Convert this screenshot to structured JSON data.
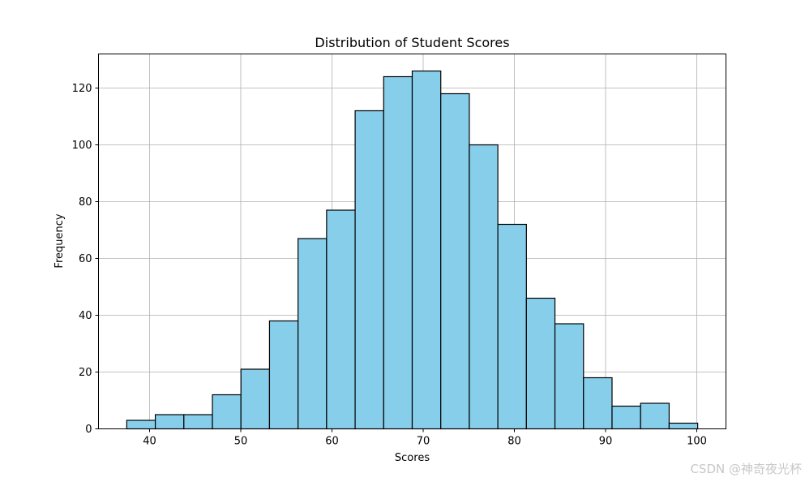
{
  "chart_data": {
    "type": "bar",
    "title": "Distribution of Student Scores",
    "xlabel": "Scores",
    "ylabel": "Frequency",
    "bin_edges": [
      37.5,
      40.63,
      43.76,
      46.89,
      50.02,
      53.15,
      56.28,
      59.41,
      62.54,
      65.67,
      68.8,
      71.93,
      75.06,
      78.19,
      81.32,
      84.45,
      87.58,
      90.71,
      93.84,
      96.97,
      100.1
    ],
    "values": [
      3,
      5,
      5,
      12,
      21,
      38,
      67,
      77,
      112,
      124,
      126,
      118,
      100,
      72,
      46,
      37,
      18,
      8,
      9,
      2
    ],
    "xlim": [
      34.4,
      103.2
    ],
    "ylim": [
      0,
      132
    ],
    "xticks": [
      40,
      50,
      60,
      70,
      80,
      90,
      100
    ],
    "yticks": [
      0,
      20,
      40,
      60,
      80,
      100,
      120
    ],
    "grid": true,
    "bar_color": "#87ceeb",
    "edge_color": "#000000",
    "grid_color": "#b0b0b0"
  },
  "watermark": "CSDN @神奇夜光杯"
}
